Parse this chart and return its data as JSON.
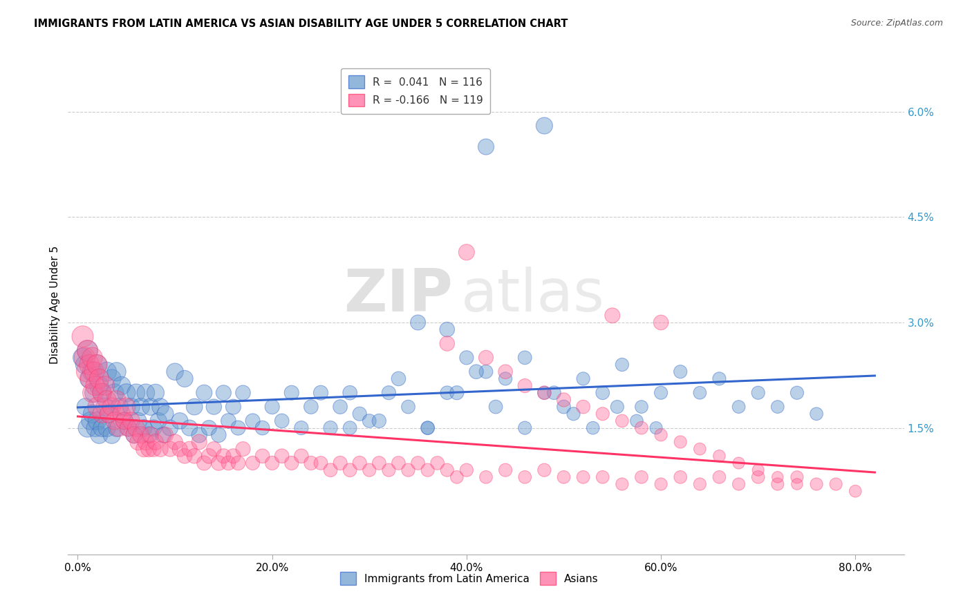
{
  "title": "IMMIGRANTS FROM LATIN AMERICA VS ASIAN DISABILITY AGE UNDER 5 CORRELATION CHART",
  "source": "Source: ZipAtlas.com",
  "xlabel_ticks": [
    "0.0%",
    "20.0%",
    "40.0%",
    "60.0%",
    "80.0%"
  ],
  "xlabel_tick_vals": [
    0.0,
    0.2,
    0.4,
    0.6,
    0.8
  ],
  "ylabel_ticks": [
    "1.5%",
    "3.0%",
    "4.5%",
    "6.0%"
  ],
  "ylabel_tick_vals": [
    1.5,
    3.0,
    4.5,
    6.0
  ],
  "ylabel": "Disability Age Under 5",
  "xlim": [
    -0.01,
    0.85
  ],
  "ylim": [
    -0.3,
    6.8
  ],
  "legend_r_latin": "R =  0.041",
  "legend_n_latin": "N = 116",
  "legend_r_asian": "R = -0.166",
  "legend_n_asian": "N = 119",
  "color_latin": "#6699CC",
  "color_asian": "#FF6699",
  "color_latin_line": "#3366CC",
  "color_asian_line": "#FF3366",
  "watermark_zip": "ZIP",
  "watermark_atlas": "atlas",
  "latin_x": [
    0.005,
    0.007,
    0.008,
    0.01,
    0.01,
    0.012,
    0.013,
    0.015,
    0.015,
    0.017,
    0.018,
    0.02,
    0.02,
    0.022,
    0.022,
    0.025,
    0.025,
    0.028,
    0.03,
    0.03,
    0.032,
    0.035,
    0.035,
    0.038,
    0.04,
    0.04,
    0.043,
    0.045,
    0.048,
    0.05,
    0.052,
    0.055,
    0.058,
    0.06,
    0.062,
    0.065,
    0.068,
    0.07,
    0.073,
    0.075,
    0.078,
    0.08,
    0.083,
    0.085,
    0.088,
    0.09,
    0.095,
    0.1,
    0.105,
    0.11,
    0.115,
    0.12,
    0.125,
    0.13,
    0.135,
    0.14,
    0.145,
    0.15,
    0.155,
    0.16,
    0.165,
    0.17,
    0.18,
    0.19,
    0.2,
    0.21,
    0.22,
    0.23,
    0.24,
    0.25,
    0.26,
    0.27,
    0.28,
    0.29,
    0.3,
    0.32,
    0.34,
    0.36,
    0.38,
    0.4,
    0.42,
    0.44,
    0.46,
    0.48,
    0.5,
    0.52,
    0.54,
    0.56,
    0.58,
    0.6,
    0.62,
    0.64,
    0.66,
    0.68,
    0.7,
    0.72,
    0.74,
    0.76,
    0.42,
    0.48,
    0.35,
    0.38,
    0.28,
    0.31,
    0.33,
    0.36,
    0.39,
    0.41,
    0.43,
    0.46,
    0.49,
    0.51,
    0.53,
    0.555,
    0.575,
    0.595
  ],
  "latin_y": [
    2.5,
    2.4,
    1.8,
    2.6,
    1.5,
    2.2,
    1.6,
    2.3,
    1.7,
    2.0,
    1.5,
    2.4,
    1.6,
    2.1,
    1.4,
    2.0,
    1.5,
    1.8,
    2.3,
    1.5,
    1.7,
    2.2,
    1.4,
    2.0,
    2.3,
    1.5,
    1.8,
    2.1,
    1.6,
    2.0,
    1.5,
    1.8,
    1.4,
    2.0,
    1.6,
    1.8,
    1.5,
    2.0,
    1.4,
    1.8,
    1.5,
    2.0,
    1.6,
    1.8,
    1.4,
    1.7,
    1.5,
    2.3,
    1.6,
    2.2,
    1.5,
    1.8,
    1.4,
    2.0,
    1.5,
    1.8,
    1.4,
    2.0,
    1.6,
    1.8,
    1.5,
    2.0,
    1.6,
    1.5,
    1.8,
    1.6,
    2.0,
    1.5,
    1.8,
    2.0,
    1.5,
    1.8,
    1.5,
    1.7,
    1.6,
    2.0,
    1.8,
    1.5,
    2.0,
    2.5,
    2.3,
    2.2,
    2.5,
    2.0,
    1.8,
    2.2,
    2.0,
    2.4,
    1.8,
    2.0,
    2.3,
    2.0,
    2.2,
    1.8,
    2.0,
    1.8,
    2.0,
    1.7,
    5.5,
    5.8,
    3.0,
    2.9,
    2.0,
    1.6,
    2.2,
    1.5,
    2.0,
    2.3,
    1.8,
    1.5,
    2.0,
    1.7,
    1.5,
    1.8,
    1.6,
    1.5
  ],
  "latin_size": [
    80,
    70,
    65,
    90,
    75,
    80,
    70,
    85,
    72,
    78,
    68,
    82,
    72,
    78,
    65,
    75,
    68,
    70,
    80,
    68,
    72,
    75,
    65,
    70,
    75,
    65,
    68,
    72,
    65,
    70,
    62,
    65,
    60,
    68,
    62,
    65,
    60,
    68,
    58,
    62,
    58,
    65,
    60,
    62,
    55,
    60,
    55,
    62,
    58,
    60,
    55,
    58,
    52,
    55,
    50,
    52,
    48,
    50,
    48,
    50,
    46,
    48,
    46,
    44,
    46,
    44,
    46,
    42,
    44,
    46,
    42,
    44,
    40,
    42,
    40,
    42,
    40,
    38,
    40,
    42,
    40,
    38,
    40,
    38,
    40,
    38,
    40,
    38,
    36,
    38,
    38,
    36,
    38,
    36,
    38,
    36,
    38,
    36,
    55,
    60,
    50,
    48,
    44,
    42,
    44,
    40,
    42,
    44,
    40,
    38,
    40,
    38,
    36,
    38,
    36,
    34
  ],
  "asian_x": [
    0.005,
    0.007,
    0.009,
    0.01,
    0.012,
    0.013,
    0.015,
    0.015,
    0.017,
    0.018,
    0.02,
    0.02,
    0.022,
    0.025,
    0.025,
    0.028,
    0.03,
    0.032,
    0.035,
    0.038,
    0.04,
    0.042,
    0.045,
    0.048,
    0.05,
    0.052,
    0.055,
    0.058,
    0.06,
    0.062,
    0.065,
    0.068,
    0.07,
    0.073,
    0.075,
    0.078,
    0.08,
    0.085,
    0.09,
    0.095,
    0.1,
    0.105,
    0.11,
    0.115,
    0.12,
    0.125,
    0.13,
    0.135,
    0.14,
    0.145,
    0.15,
    0.155,
    0.16,
    0.165,
    0.17,
    0.18,
    0.19,
    0.2,
    0.21,
    0.22,
    0.23,
    0.24,
    0.25,
    0.26,
    0.27,
    0.28,
    0.29,
    0.3,
    0.31,
    0.32,
    0.33,
    0.34,
    0.35,
    0.36,
    0.37,
    0.38,
    0.39,
    0.4,
    0.42,
    0.44,
    0.46,
    0.48,
    0.5,
    0.52,
    0.54,
    0.56,
    0.58,
    0.6,
    0.62,
    0.64,
    0.66,
    0.68,
    0.7,
    0.72,
    0.74,
    0.76,
    0.78,
    0.8,
    0.55,
    0.6,
    0.38,
    0.4,
    0.42,
    0.44,
    0.46,
    0.48,
    0.5,
    0.52,
    0.54,
    0.56,
    0.58,
    0.6,
    0.62,
    0.64,
    0.66,
    0.68,
    0.7,
    0.72,
    0.74
  ],
  "asian_y": [
    2.8,
    2.5,
    2.3,
    2.6,
    2.4,
    2.2,
    2.5,
    2.0,
    2.3,
    2.1,
    2.4,
    1.8,
    2.2,
    2.0,
    1.7,
    2.1,
    1.9,
    1.7,
    1.8,
    1.6,
    1.9,
    1.5,
    1.7,
    1.6,
    1.8,
    1.5,
    1.6,
    1.4,
    1.5,
    1.3,
    1.4,
    1.2,
    1.3,
    1.2,
    1.4,
    1.2,
    1.3,
    1.2,
    1.4,
    1.2,
    1.3,
    1.2,
    1.1,
    1.2,
    1.1,
    1.3,
    1.0,
    1.1,
    1.2,
    1.0,
    1.1,
    1.0,
    1.1,
    1.0,
    1.2,
    1.0,
    1.1,
    1.0,
    1.1,
    1.0,
    1.1,
    1.0,
    1.0,
    0.9,
    1.0,
    0.9,
    1.0,
    0.9,
    1.0,
    0.9,
    1.0,
    0.9,
    1.0,
    0.9,
    1.0,
    0.9,
    0.8,
    0.9,
    0.8,
    0.9,
    0.8,
    0.9,
    0.8,
    0.8,
    0.8,
    0.7,
    0.8,
    0.7,
    0.8,
    0.7,
    0.8,
    0.7,
    0.8,
    0.7,
    0.8,
    0.7,
    0.7,
    0.6,
    3.1,
    3.0,
    2.7,
    4.0,
    2.5,
    2.3,
    2.1,
    2.0,
    1.9,
    1.8,
    1.7,
    1.6,
    1.5,
    1.4,
    1.3,
    1.2,
    1.1,
    1.0,
    0.9,
    0.8,
    0.7
  ],
  "asian_size": [
    100,
    95,
    90,
    95,
    88,
    85,
    90,
    82,
    85,
    80,
    88,
    78,
    82,
    78,
    72,
    78,
    74,
    70,
    72,
    68,
    72,
    65,
    68,
    65,
    70,
    62,
    65,
    60,
    62,
    58,
    60,
    55,
    58,
    54,
    56,
    52,
    55,
    52,
    55,
    50,
    52,
    50,
    48,
    50,
    48,
    50,
    46,
    48,
    46,
    48,
    46,
    44,
    46,
    44,
    46,
    42,
    44,
    42,
    44,
    42,
    44,
    42,
    40,
    40,
    42,
    40,
    42,
    38,
    40,
    38,
    40,
    38,
    40,
    38,
    40,
    38,
    36,
    38,
    36,
    38,
    36,
    38,
    36,
    36,
    36,
    34,
    36,
    34,
    36,
    34,
    36,
    34,
    36,
    34,
    34,
    34,
    34,
    32,
    50,
    48,
    48,
    55,
    46,
    44,
    42,
    40,
    42,
    40,
    38,
    36,
    36,
    34,
    34,
    32,
    32,
    30,
    30,
    28,
    28
  ]
}
